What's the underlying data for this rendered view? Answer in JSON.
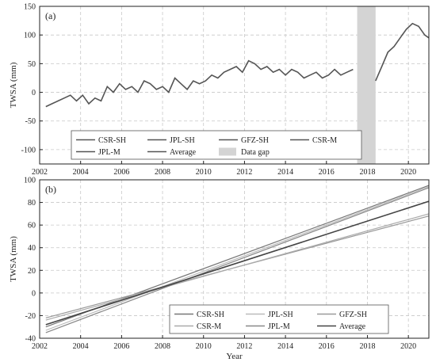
{
  "chart_data": [
    {
      "type": "line",
      "panel_label": "(a)",
      "xlabel": "",
      "ylabel": "TWSA (mm)",
      "xlim": [
        2002,
        2021
      ],
      "ylim": [
        -125,
        150
      ],
      "xticks": [
        "2002",
        "2004",
        "2006",
        "2008",
        "2010",
        "2012",
        "2014",
        "2016",
        "2018",
        "2020"
      ],
      "yticks": [
        "-100",
        "-50",
        "0",
        "50",
        "100",
        "150"
      ],
      "grid": true,
      "legend_position": "bottom-left",
      "legend": [
        "CSR-SH",
        "JPL-SH",
        "GFZ-SH",
        "CSR-M",
        "JPL-M",
        "Average",
        "Data gap"
      ],
      "data_gap": [
        2017.5,
        2018.4
      ],
      "series": [
        {
          "name": "Average",
          "x": [
            2002.3,
            2002.6,
            2002.9,
            2003.2,
            2003.5,
            2003.8,
            2004.1,
            2004.4,
            2004.7,
            2005.0,
            2005.3,
            2005.6,
            2005.9,
            2006.2,
            2006.5,
            2006.8,
            2007.1,
            2007.4,
            2007.7,
            2008.0,
            2008.3,
            2008.6,
            2008.9,
            2009.2,
            2009.5,
            2009.8,
            2010.1,
            2010.4,
            2010.7,
            2011.0,
            2011.3,
            2011.6,
            2011.9,
            2012.2,
            2012.5,
            2012.8,
            2013.1,
            2013.4,
            2013.7,
            2014.0,
            2014.3,
            2014.6,
            2014.9,
            2015.2,
            2015.5,
            2015.8,
            2016.1,
            2016.4,
            2016.7,
            2017.0,
            2017.3
          ],
          "y": [
            -25,
            -20,
            -15,
            -10,
            -5,
            -15,
            -5,
            -20,
            -10,
            -15,
            10,
            0,
            15,
            5,
            10,
            0,
            20,
            15,
            5,
            10,
            0,
            25,
            15,
            5,
            20,
            15,
            20,
            30,
            25,
            35,
            40,
            45,
            35,
            55,
            50,
            40,
            45,
            35,
            40,
            30,
            40,
            35,
            25,
            30,
            35,
            25,
            30,
            40,
            30,
            35,
            40
          ]
        },
        {
          "name": "Average",
          "x": [
            2018.4,
            2018.7,
            2019.0,
            2019.3,
            2019.6,
            2019.9,
            2020.2,
            2020.5,
            2020.8,
            2021.0
          ],
          "y": [
            20,
            45,
            70,
            80,
            95,
            110,
            120,
            115,
            100,
            95
          ]
        }
      ]
    },
    {
      "type": "line",
      "panel_label": "(b)",
      "xlabel": "Year",
      "ylabel": "TWSA (mm)",
      "xlim": [
        2002,
        2021
      ],
      "ylim": [
        -40,
        100
      ],
      "xticks": [
        "2002",
        "2004",
        "2006",
        "2008",
        "2010",
        "2012",
        "2014",
        "2016",
        "2018",
        "2020"
      ],
      "yticks": [
        "-40",
        "-20",
        "0",
        "20",
        "40",
        "60",
        "80",
        "100"
      ],
      "grid": true,
      "legend_position": "bottom-right",
      "legend": [
        "CSR-SH",
        "JPL-SH",
        "GFZ-SH",
        "CSR-M",
        "JPL-M",
        "Average"
      ],
      "series": [
        {
          "name": "CSR-SH",
          "x": [
            2002.3,
            2021.0
          ],
          "y": [
            -30,
            95
          ],
          "color": "#777777"
        },
        {
          "name": "JPL-SH",
          "x": [
            2002.3,
            2021.0
          ],
          "y": [
            -33,
            94
          ],
          "color": "#bbbbbb"
        },
        {
          "name": "GFZ-SH",
          "x": [
            2002.3,
            2021.0
          ],
          "y": [
            -22,
            68
          ],
          "color": "#999999"
        },
        {
          "name": "CSR-M",
          "x": [
            2002.3,
            2021.0
          ],
          "y": [
            -24,
            70
          ],
          "color": "#aaaaaa"
        },
        {
          "name": "JPL-M",
          "x": [
            2002.3,
            2021.0
          ],
          "y": [
            -35,
            93
          ],
          "color": "#888888"
        },
        {
          "name": "Average",
          "x": [
            2002.3,
            2021.0
          ],
          "y": [
            -28,
            81
          ],
          "color": "#444444"
        }
      ]
    }
  ]
}
